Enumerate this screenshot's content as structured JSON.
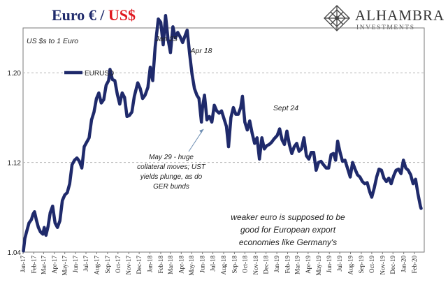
{
  "header": {
    "title_part1": "Euro € / ",
    "title_part2": "US$",
    "logo_name": "ALHAMBRA",
    "logo_sub": "INVESTMENTS",
    "logo_icon": "diamond-lattice-icon",
    "title_colors": [
      "#1f2a6b",
      "#e0171f"
    ]
  },
  "chart_data": {
    "type": "line",
    "title": "",
    "ylabel": "US $s to 1 Euro",
    "xlabel": "",
    "ylim": [
      1.04,
      1.24
    ],
    "yticks": [
      1.04,
      1.12,
      1.2
    ],
    "ytick_labels": [
      "1.04",
      "1.12",
      "1.20"
    ],
    "xlim": [
      "2017-01-01",
      "2020-02-29"
    ],
    "xticks": [
      "Jan-17",
      "Feb-17",
      "Mar-17",
      "Apr-17",
      "May-17",
      "Jun-17",
      "Jul-17",
      "Aug-17",
      "Sep-17",
      "Oct-17",
      "Nov-17",
      "Dec-17",
      "Jan-18",
      "Feb-18",
      "Mar-18",
      "Apr-18",
      "May-18",
      "Jun-18",
      "Jul-18",
      "Aug-18",
      "Sep-18",
      "Oct-18",
      "Nov-18",
      "Dec-18",
      "Jan-19",
      "Feb-19",
      "Mar-19",
      "Apr-19",
      "May-19",
      "Jun-19",
      "Jul-19",
      "Aug-19",
      "Sep-19",
      "Oct-19",
      "Nov-19",
      "Dec-19",
      "Jan-20",
      "Feb-20"
    ],
    "grid": "horizontal dashed",
    "legend_position": "upper-left",
    "series": [
      {
        "name": "EURUSD",
        "color": "#1f2a6b",
        "points": [
          [
            "2017-01-02",
            1.041
          ],
          [
            "2017-01-06",
            1.052
          ],
          [
            "2017-01-11",
            1.058
          ],
          [
            "2017-01-18",
            1.066
          ],
          [
            "2017-01-25",
            1.069
          ],
          [
            "2017-01-30",
            1.074
          ],
          [
            "2017-02-03",
            1.076
          ],
          [
            "2017-02-08",
            1.069
          ],
          [
            "2017-02-14",
            1.062
          ],
          [
            "2017-02-20",
            1.058
          ],
          [
            "2017-02-27",
            1.056
          ],
          [
            "2017-03-03",
            1.062
          ],
          [
            "2017-03-08",
            1.055
          ],
          [
            "2017-03-14",
            1.063
          ],
          [
            "2017-03-20",
            1.075
          ],
          [
            "2017-03-27",
            1.081
          ],
          [
            "2017-04-03",
            1.066
          ],
          [
            "2017-04-10",
            1.062
          ],
          [
            "2017-04-17",
            1.068
          ],
          [
            "2017-04-24",
            1.086
          ],
          [
            "2017-05-01",
            1.091
          ],
          [
            "2017-05-08",
            1.093
          ],
          [
            "2017-05-15",
            1.101
          ],
          [
            "2017-05-22",
            1.118
          ],
          [
            "2017-05-29",
            1.122
          ],
          [
            "2017-06-05",
            1.124
          ],
          [
            "2017-06-12",
            1.121
          ],
          [
            "2017-06-19",
            1.115
          ],
          [
            "2017-06-26",
            1.134
          ],
          [
            "2017-07-03",
            1.138
          ],
          [
            "2017-07-10",
            1.142
          ],
          [
            "2017-07-17",
            1.158
          ],
          [
            "2017-07-24",
            1.165
          ],
          [
            "2017-07-31",
            1.177
          ],
          [
            "2017-08-07",
            1.182
          ],
          [
            "2017-08-14",
            1.173
          ],
          [
            "2017-08-21",
            1.176
          ],
          [
            "2017-08-28",
            1.189
          ],
          [
            "2017-09-04",
            1.193
          ],
          [
            "2017-09-08",
            1.203
          ],
          [
            "2017-09-15",
            1.194
          ],
          [
            "2017-09-22",
            1.193
          ],
          [
            "2017-09-29",
            1.181
          ],
          [
            "2017-10-06",
            1.172
          ],
          [
            "2017-10-13",
            1.182
          ],
          [
            "2017-10-20",
            1.178
          ],
          [
            "2017-10-27",
            1.161
          ],
          [
            "2017-11-03",
            1.162
          ],
          [
            "2017-11-10",
            1.165
          ],
          [
            "2017-11-17",
            1.179
          ],
          [
            "2017-11-27",
            1.191
          ],
          [
            "2017-12-04",
            1.186
          ],
          [
            "2017-12-11",
            1.177
          ],
          [
            "2017-12-18",
            1.18
          ],
          [
            "2017-12-26",
            1.187
          ],
          [
            "2018-01-02",
            1.205
          ],
          [
            "2018-01-09",
            1.193
          ],
          [
            "2018-01-16",
            1.223
          ],
          [
            "2018-01-25",
            1.248
          ],
          [
            "2018-02-01",
            1.245
          ],
          [
            "2018-02-08",
            1.225
          ],
          [
            "2018-02-15",
            1.251
          ],
          [
            "2018-02-22",
            1.23
          ],
          [
            "2018-03-01",
            1.218
          ],
          [
            "2018-03-08",
            1.241
          ],
          [
            "2018-03-15",
            1.231
          ],
          [
            "2018-03-22",
            1.236
          ],
          [
            "2018-03-29",
            1.232
          ],
          [
            "2018-04-05",
            1.227
          ],
          [
            "2018-04-12",
            1.233
          ],
          [
            "2018-04-18",
            1.238
          ],
          [
            "2018-04-25",
            1.217
          ],
          [
            "2018-05-02",
            1.199
          ],
          [
            "2018-05-09",
            1.186
          ],
          [
            "2018-05-16",
            1.18
          ],
          [
            "2018-05-22",
            1.177
          ],
          [
            "2018-05-29",
            1.156
          ],
          [
            "2018-06-01",
            1.169
          ],
          [
            "2018-06-07",
            1.18
          ],
          [
            "2018-06-14",
            1.158
          ],
          [
            "2018-06-21",
            1.161
          ],
          [
            "2018-06-28",
            1.156
          ],
          [
            "2018-07-05",
            1.171
          ],
          [
            "2018-07-12",
            1.166
          ],
          [
            "2018-07-19",
            1.164
          ],
          [
            "2018-07-26",
            1.166
          ],
          [
            "2018-08-02",
            1.159
          ],
          [
            "2018-08-09",
            1.152
          ],
          [
            "2018-08-15",
            1.134
          ],
          [
            "2018-08-22",
            1.16
          ],
          [
            "2018-08-29",
            1.169
          ],
          [
            "2018-09-05",
            1.163
          ],
          [
            "2018-09-12",
            1.163
          ],
          [
            "2018-09-19",
            1.169
          ],
          [
            "2018-09-24",
            1.179
          ],
          [
            "2018-10-01",
            1.156
          ],
          [
            "2018-10-08",
            1.149
          ],
          [
            "2018-10-15",
            1.157
          ],
          [
            "2018-10-22",
            1.146
          ],
          [
            "2018-10-29",
            1.137
          ],
          [
            "2018-11-05",
            1.142
          ],
          [
            "2018-11-12",
            1.123
          ],
          [
            "2018-11-19",
            1.142
          ],
          [
            "2018-11-26",
            1.132
          ],
          [
            "2018-12-03",
            1.135
          ],
          [
            "2018-12-10",
            1.136
          ],
          [
            "2018-12-17",
            1.138
          ],
          [
            "2018-12-24",
            1.141
          ],
          [
            "2019-01-02",
            1.144
          ],
          [
            "2019-01-09",
            1.15
          ],
          [
            "2019-01-16",
            1.14
          ],
          [
            "2019-01-23",
            1.136
          ],
          [
            "2019-01-30",
            1.148
          ],
          [
            "2019-02-06",
            1.136
          ],
          [
            "2019-02-13",
            1.128
          ],
          [
            "2019-02-20",
            1.134
          ],
          [
            "2019-02-27",
            1.137
          ],
          [
            "2019-03-06",
            1.13
          ],
          [
            "2019-03-13",
            1.132
          ],
          [
            "2019-03-20",
            1.142
          ],
          [
            "2019-03-27",
            1.126
          ],
          [
            "2019-04-03",
            1.123
          ],
          [
            "2019-04-10",
            1.129
          ],
          [
            "2019-04-17",
            1.129
          ],
          [
            "2019-04-24",
            1.113
          ],
          [
            "2019-05-01",
            1.12
          ],
          [
            "2019-05-08",
            1.121
          ],
          [
            "2019-05-15",
            1.118
          ],
          [
            "2019-05-23",
            1.115
          ],
          [
            "2019-05-30",
            1.115
          ],
          [
            "2019-06-06",
            1.127
          ],
          [
            "2019-06-13",
            1.128
          ],
          [
            "2019-06-19",
            1.122
          ],
          [
            "2019-06-25",
            1.139
          ],
          [
            "2019-07-02",
            1.129
          ],
          [
            "2019-07-09",
            1.121
          ],
          [
            "2019-07-16",
            1.122
          ],
          [
            "2019-07-23",
            1.115
          ],
          [
            "2019-07-31",
            1.107
          ],
          [
            "2019-08-07",
            1.12
          ],
          [
            "2019-08-14",
            1.114
          ],
          [
            "2019-08-21",
            1.109
          ],
          [
            "2019-08-28",
            1.107
          ],
          [
            "2019-09-04",
            1.103
          ],
          [
            "2019-09-11",
            1.101
          ],
          [
            "2019-09-18",
            1.102
          ],
          [
            "2019-09-25",
            1.094
          ],
          [
            "2019-10-01",
            1.089
          ],
          [
            "2019-10-08",
            1.097
          ],
          [
            "2019-10-15",
            1.107
          ],
          [
            "2019-10-22",
            1.114
          ],
          [
            "2019-10-29",
            1.113
          ],
          [
            "2019-11-05",
            1.106
          ],
          [
            "2019-11-12",
            1.103
          ],
          [
            "2019-11-19",
            1.106
          ],
          [
            "2019-11-26",
            1.101
          ],
          [
            "2019-12-03",
            1.108
          ],
          [
            "2019-12-10",
            1.113
          ],
          [
            "2019-12-17",
            1.114
          ],
          [
            "2019-12-24",
            1.11
          ],
          [
            "2019-12-31",
            1.122
          ],
          [
            "2020-01-07",
            1.115
          ],
          [
            "2020-01-14",
            1.113
          ],
          [
            "2020-01-21",
            1.109
          ],
          [
            "2020-01-28",
            1.101
          ],
          [
            "2020-02-04",
            1.105
          ],
          [
            "2020-02-11",
            1.092
          ],
          [
            "2020-02-18",
            1.081
          ],
          [
            "2020-02-20",
            1.079
          ]
        ]
      }
    ],
    "annotations": [
      {
        "text": "Jan 25",
        "x": "2018-01-25",
        "y": 1.251
      },
      {
        "text": "Apr 18",
        "x": "2018-04-18",
        "y": 1.241
      },
      {
        "text": "Sept 24",
        "x": "2018-12-15",
        "y": 1.187
      },
      {
        "lines": [
          "May 29 - huge",
          "collateral moves; UST",
          "yields plunge, as do",
          "GER bunds"
        ],
        "arrow_to": [
          "2018-05-29",
          1.156
        ]
      },
      {
        "lines": [
          "weaker euro is supposed to be",
          "good for European export",
          "economies like Germany's"
        ]
      }
    ]
  }
}
